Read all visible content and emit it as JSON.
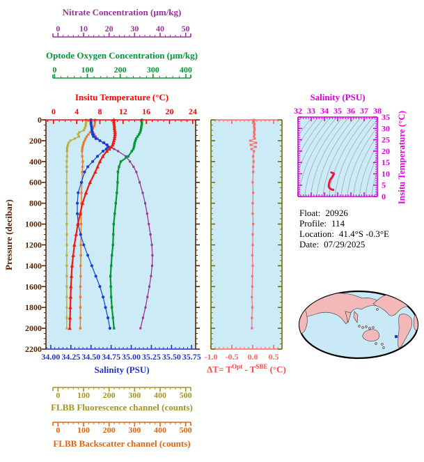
{
  "colors": {
    "plot_bg": "#CDEBF7",
    "pressure_axis": "#552200",
    "delta_frame": "#6F7000",
    "contour": "#9AA8B6",
    "map_ocean": "#C9E9F6",
    "map_land": "#F3B9B9",
    "map_outline": "#000000",
    "float_marker": "#2233DD"
  },
  "axes": {
    "nitrate": {
      "title": "Nitrate Concentration (µm/kg)",
      "color": "#993399",
      "labels": [
        "0",
        "10",
        "20",
        "30",
        "40",
        "50"
      ]
    },
    "oxygen": {
      "title": "Optode Oxygen Concentration (µm/kg)",
      "color": "#009933",
      "labels": [
        "0",
        "100",
        "200",
        "300",
        "400"
      ]
    },
    "temperature": {
      "title": "Insitu Temperature (°C)",
      "color": "#FF0000",
      "labels": [
        "0",
        "4",
        "8",
        "12",
        "16",
        "20",
        "24"
      ]
    },
    "pressure": {
      "title": "Pressure (decibar)",
      "color": "#552200",
      "labels": [
        "0",
        "200",
        "400",
        "600",
        "800",
        "1000",
        "1200",
        "1400",
        "1600",
        "1800",
        "2000",
        "2200"
      ]
    },
    "salinity": {
      "title": "Salinity (PSU)",
      "color": "#2233CC",
      "labels": [
        "34.00",
        "34.25",
        "34.50",
        "34.75",
        "35.00",
        "35.25",
        "35.50",
        "35.75"
      ]
    },
    "fluorescence": {
      "title": "FLBB Fluorescence channel (counts)",
      "color": "#A39420",
      "labels": [
        "0",
        "100",
        "200",
        "300",
        "400",
        "500"
      ]
    },
    "backscatter": {
      "title": "FLBB Backscatter channel (counts)",
      "color": "#DD6611",
      "labels": [
        "0",
        "100",
        "200",
        "300",
        "400",
        "500"
      ]
    },
    "delta": {
      "title_prefix": "ΔT= T",
      "title_sup1": "Opt",
      "title_mid": " - T",
      "title_sup2": "SBE",
      "title_suffix": " (°C)",
      "color": "#FF6666",
      "title_color": "#FF4444",
      "labels": [
        "-1.0",
        "-0.5",
        "0.0",
        "0.5"
      ]
    },
    "ts_salinity": {
      "title": "Salinity (PSU)",
      "color": "#DD00DD",
      "labels": [
        "32",
        "33",
        "34",
        "35",
        "36",
        "37",
        "38"
      ]
    },
    "ts_temperature": {
      "title": "Insitu Temperature (°C)",
      "color": "#DD00DD",
      "labels": [
        "0",
        "5",
        "10",
        "15",
        "20",
        "25",
        "30",
        "35"
      ]
    }
  },
  "info": {
    "lines": [
      {
        "label": "Float:",
        "value": "20926"
      },
      {
        "label": "Profile:",
        "value": "114"
      },
      {
        "label": "Location:",
        "value": "41.4°S  -0.3°E"
      },
      {
        "label": "Date:",
        "value": "07/29/2025"
      }
    ]
  },
  "chart_data": [
    {
      "id": "profiles",
      "type": "line",
      "ylabel": "Pressure (decibar)",
      "ylim": [
        0,
        2200
      ],
      "pressure": [
        0,
        20,
        40,
        60,
        80,
        100,
        120,
        140,
        160,
        180,
        200,
        220,
        240,
        260,
        280,
        300,
        350,
        400,
        450,
        500,
        600,
        700,
        800,
        900,
        1000,
        1100,
        1200,
        1300,
        1400,
        1500,
        1600,
        1700,
        1800,
        1900,
        2000
      ],
      "series": [
        {
          "name": "Insitu Temperature (°C)",
          "color": "#F01810",
          "marker": "triangle",
          "xlim": [
            -1.3,
            24.5
          ],
          "values": [
            10.4,
            10.4,
            10.45,
            10.5,
            10.5,
            10.55,
            10.6,
            10.6,
            10.55,
            10.5,
            10.4,
            10.3,
            10.2,
            10.0,
            9.6,
            9.2,
            8.5,
            8.0,
            7.6,
            7.2,
            6.3,
            5.6,
            5.0,
            4.6,
            4.2,
            3.9,
            3.6,
            3.4,
            3.2,
            3.1,
            3.0,
            2.95,
            2.9,
            2.85,
            2.8
          ]
        },
        {
          "name": "Salinity (PSU)",
          "color": "#1540D8",
          "marker": "circle",
          "xlim": [
            33.94,
            35.8
          ],
          "values": [
            34.5,
            34.5,
            34.5,
            34.505,
            34.51,
            34.51,
            34.515,
            34.52,
            34.53,
            34.56,
            34.61,
            34.66,
            34.7,
            34.71,
            34.69,
            34.65,
            34.58,
            34.52,
            34.46,
            34.42,
            34.38,
            34.34,
            34.33,
            34.33,
            34.34,
            34.37,
            34.41,
            34.46,
            34.51,
            34.56,
            34.61,
            34.65,
            34.68,
            34.71,
            34.735
          ]
        },
        {
          "name": "Optode Oxygen Concentration (µm/kg)",
          "color": "#009933",
          "marker": "square",
          "xlim": [
            -5,
            415
          ],
          "values": [
            264,
            264,
            264,
            263,
            262,
            261,
            259,
            256,
            252,
            248,
            246,
            244,
            243,
            242,
            240,
            236,
            226,
            205,
            200,
            197,
            196,
            194,
            191,
            188,
            185,
            184,
            183,
            180,
            178,
            176,
            177,
            178,
            180,
            183,
            186
          ]
        },
        {
          "name": "Nitrate Concentration (µm/kg)",
          "color": "#993399",
          "marker": "square",
          "xlim": [
            -2,
            52
          ],
          "values": [
            14.0,
            14.1,
            14.2,
            14.3,
            14.5,
            14.7,
            15.0,
            15.4,
            15.9,
            16.6,
            17.5,
            18.6,
            19.8,
            21.2,
            22.6,
            24.0,
            26.8,
            28.3,
            29.6,
            30.6,
            31.8,
            32.9,
            33.8,
            34.5,
            35.1,
            35.7,
            36.2,
            36.4,
            36.3,
            35.9,
            35.3,
            34.6,
            33.9,
            33.0,
            32.1
          ]
        },
        {
          "name": "FLBB Fluorescence channel (counts)",
          "color": "#BFAE3C",
          "marker": "square",
          "xlim": [
            -20,
            520
          ],
          "values": [
            125,
            125,
            124,
            123,
            120,
            117,
            100,
            96,
            99,
            84,
            68,
            62,
            59,
            57,
            56,
            56,
            56,
            55,
            55,
            55,
            55,
            55,
            55,
            55,
            55,
            55,
            55,
            55,
            55,
            55,
            55,
            55,
            55,
            55,
            55
          ]
        },
        {
          "name": "FLBB Backscatter channel (counts)",
          "color": "#E87B28",
          "marker": "square",
          "xlim": [
            -20,
            520
          ],
          "values": [
            158,
            157,
            156,
            154,
            150,
            146,
            139,
            133,
            127,
            123,
            119,
            116,
            114,
            112,
            111,
            110,
            111,
            113,
            112,
            111,
            110,
            108,
            108,
            107,
            107,
            106,
            106,
            106,
            105,
            105,
            104,
            104,
            104,
            104,
            104
          ]
        }
      ]
    },
    {
      "id": "delta_t",
      "type": "line",
      "xlim": [
        -1.0,
        0.7
      ],
      "tick_values": [
        -1.0,
        -0.5,
        0.0,
        0.5
      ],
      "color": "#F87070",
      "marker": "square",
      "values": [
        0.03,
        0.03,
        0.04,
        0.03,
        0.04,
        0.04,
        0.03,
        0.04,
        0.03,
        0.05,
        -0.06,
        0.08,
        -0.05,
        0.07,
        -0.03,
        0.03,
        0.01,
        0.02,
        0.01,
        0.01,
        0.0,
        0.01,
        0.0,
        0.0,
        0.01,
        0.0,
        0.0,
        -0.01,
        0.0,
        -0.01,
        -0.01,
        -0.02,
        -0.01,
        -0.02,
        -0.02
      ]
    },
    {
      "id": "ts_diagram",
      "type": "line",
      "xlim": [
        32,
        38
      ],
      "ylim": [
        0,
        35
      ],
      "curve_color": "#EE1144",
      "note": "curve is salinity series vs temperature series from profiles"
    }
  ]
}
